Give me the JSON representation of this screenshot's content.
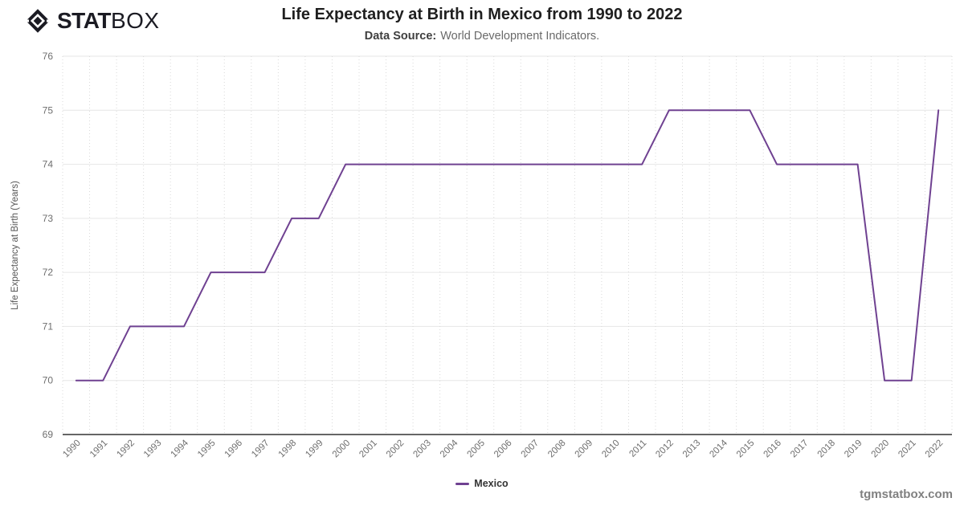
{
  "brand": {
    "stat": "STAT",
    "box": "BOX",
    "color": "#1b1b23"
  },
  "watermark": "tgmstatbox.com",
  "colors": {
    "series": "#6f4191",
    "h_gridline": "#e6e6e6",
    "v_gridline": "#d9d9d9",
    "axis_line": "#333333",
    "tick_label": "#6e6e6e",
    "axis_title": "#555555"
  },
  "chart_data": {
    "type": "line",
    "title": "Life Expectancy at Birth in Mexico from 1990 to 2022",
    "subtitle_label": "Data Source:",
    "subtitle_value": "World Development Indicators.",
    "x": [
      1990,
      1991,
      1992,
      1993,
      1994,
      1995,
      1996,
      1997,
      1998,
      1999,
      2000,
      2001,
      2002,
      2003,
      2004,
      2005,
      2006,
      2007,
      2008,
      2009,
      2010,
      2011,
      2012,
      2013,
      2014,
      2015,
      2016,
      2017,
      2018,
      2019,
      2020,
      2021,
      2022
    ],
    "series": [
      {
        "name": "Mexico",
        "color": "#6f4191",
        "values": [
          70,
          70,
          71,
          71,
          71,
          72,
          72,
          72,
          73,
          73,
          74,
          74,
          74,
          74,
          74,
          74,
          74,
          74,
          74,
          74,
          74,
          74,
          75,
          75,
          75,
          75,
          74,
          74,
          74,
          74,
          70,
          70,
          75
        ]
      }
    ],
    "xlabel": "",
    "ylabel": "Life Expectancy at Birth (Years)",
    "ylim": [
      69,
      76
    ],
    "ytick_step": 1,
    "grid": true,
    "legend_position": "bottom"
  }
}
